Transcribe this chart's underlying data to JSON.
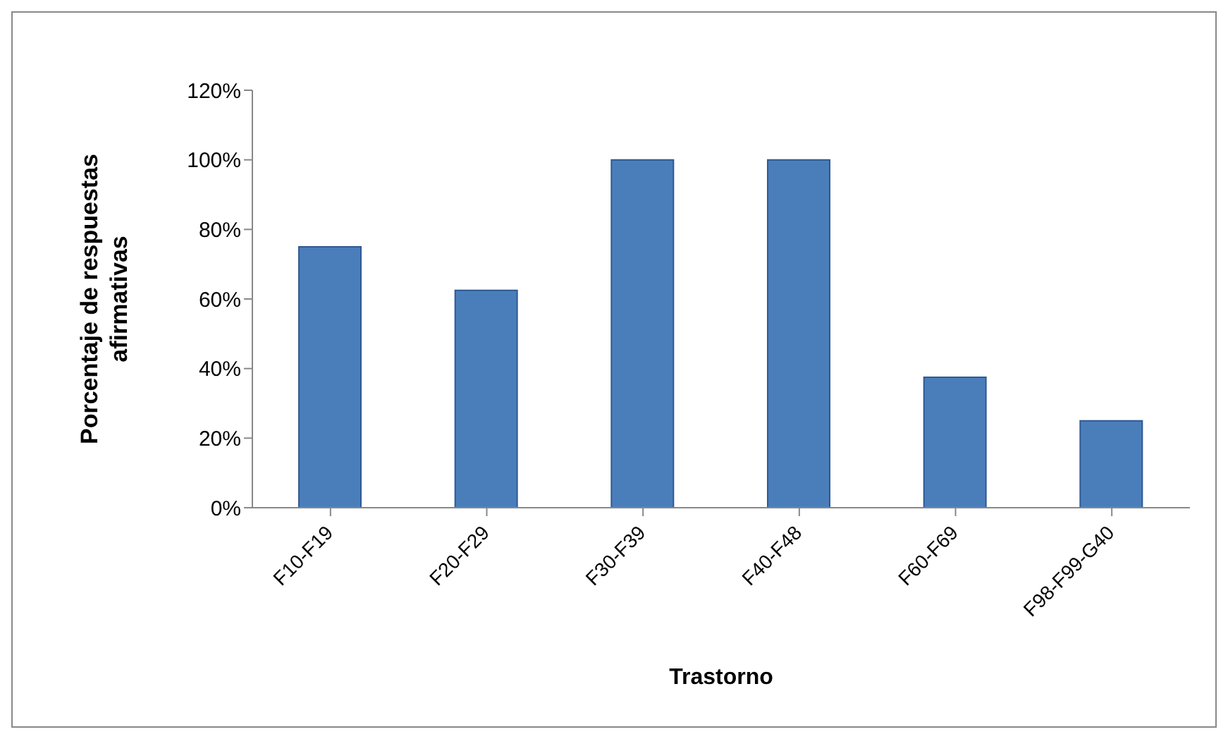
{
  "chart_data": {
    "type": "bar",
    "xlabel": "Trastorno",
    "ylabel": "Porcentaje de respuestas afirmativas",
    "categories": [
      "F10-F19",
      "F20-F29",
      "F30-F39",
      "F40-F48",
      "F60-F69",
      "F98-F99-G40"
    ],
    "values": [
      75,
      62.5,
      100,
      100,
      37.5,
      25
    ],
    "color": "#4a7ebb",
    "ylim": [
      0,
      120
    ],
    "yticks": [
      {
        "value": 0,
        "label": "0%"
      },
      {
        "value": 20,
        "label": "20%"
      },
      {
        "value": 40,
        "label": "40%"
      },
      {
        "value": 60,
        "label": "60%"
      },
      {
        "value": 80,
        "label": "80%"
      },
      {
        "value": 100,
        "label": "100%"
      },
      {
        "value": 120,
        "label": "120%"
      }
    ],
    "grid": false,
    "legend": false
  }
}
